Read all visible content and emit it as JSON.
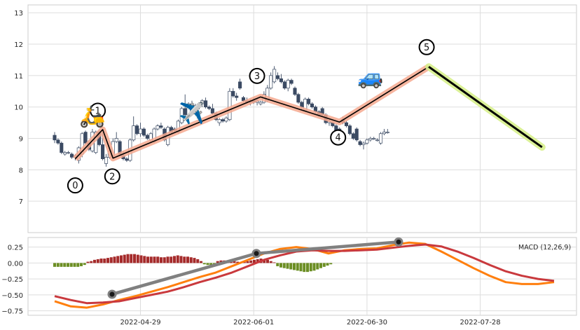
{
  "chart_data": [
    {
      "type": "candlestick",
      "panel": "price",
      "ylim": [
        6.0,
        13.25
      ],
      "yticks": [
        7,
        8,
        9,
        10,
        11,
        12,
        13
      ],
      "xlim": [
        -5,
        175
      ],
      "grid": true,
      "candles": [
        [
          9.1,
          9.2,
          8.85,
          8.95
        ],
        [
          8.95,
          9.0,
          8.8,
          8.85
        ],
        [
          8.85,
          8.9,
          8.5,
          8.55
        ],
        [
          8.5,
          8.6,
          8.45,
          8.55
        ],
        [
          8.55,
          8.6,
          8.5,
          8.55
        ],
        [
          8.5,
          8.55,
          8.35,
          8.4
        ],
        [
          8.4,
          8.5,
          8.3,
          8.45
        ],
        [
          8.3,
          8.75,
          8.2,
          8.7
        ],
        [
          8.5,
          9.2,
          8.4,
          9.15
        ],
        [
          9.2,
          9.25,
          8.8,
          8.85
        ],
        [
          8.85,
          8.95,
          8.6,
          8.65
        ],
        [
          8.6,
          9.3,
          8.55,
          9.2
        ],
        [
          8.55,
          9.25,
          8.5,
          9.2
        ],
        [
          9.2,
          9.25,
          8.75,
          8.8
        ],
        [
          8.8,
          9.2,
          8.3,
          8.35
        ],
        [
          8.2,
          8.5,
          8.1,
          8.4
        ],
        [
          8.4,
          8.65,
          8.35,
          8.6
        ],
        [
          8.45,
          9.0,
          8.4,
          8.9
        ],
        [
          8.9,
          9.2,
          8.85,
          9.0
        ],
        [
          8.9,
          8.95,
          8.45,
          8.5
        ],
        [
          8.45,
          8.6,
          8.3,
          8.35
        ],
        [
          8.35,
          8.4,
          8.25,
          8.3
        ],
        [
          8.3,
          9.0,
          8.25,
          8.95
        ],
        [
          8.95,
          9.7,
          8.9,
          9.4
        ],
        [
          9.4,
          9.45,
          9.1,
          9.15
        ],
        [
          9.15,
          9.5,
          9.05,
          9.3
        ],
        [
          9.3,
          9.35,
          9.05,
          9.1
        ],
        [
          9.1,
          9.15,
          8.95,
          9.0
        ],
        [
          8.95,
          9.2,
          8.85,
          9.15
        ],
        [
          8.9,
          9.35,
          8.85,
          9.3
        ],
        [
          9.3,
          9.45,
          9.25,
          9.4
        ],
        [
          9.4,
          9.5,
          9.3,
          9.35
        ],
        [
          9.3,
          9.35,
          8.9,
          8.95
        ],
        [
          8.8,
          9.4,
          8.75,
          9.35
        ],
        [
          9.35,
          9.4,
          9.15,
          9.2
        ],
        [
          9.3,
          9.35,
          9.2,
          9.25
        ],
        [
          9.2,
          9.6,
          9.15,
          9.55
        ],
        [
          9.5,
          10.0,
          9.45,
          9.95
        ],
        [
          9.95,
          10.4,
          9.7,
          9.75
        ],
        [
          9.75,
          10.15,
          9.7,
          10.1
        ],
        [
          10.1,
          10.2,
          9.95,
          10.0
        ],
        [
          10.0,
          10.1,
          9.9,
          10.05
        ],
        [
          10.05,
          10.15,
          9.95,
          10.1
        ],
        [
          10.1,
          10.25,
          10.0,
          10.2
        ],
        [
          10.2,
          10.3,
          9.95,
          10.0
        ],
        [
          10.0,
          10.05,
          9.9,
          9.95
        ],
        [
          9.95,
          10.1,
          9.75,
          9.8
        ],
        [
          9.8,
          9.85,
          9.55,
          9.6
        ],
        [
          9.5,
          9.65,
          9.4,
          9.6
        ],
        [
          9.6,
          9.65,
          9.5,
          9.55
        ],
        [
          9.55,
          9.7,
          9.5,
          9.65
        ],
        [
          9.6,
          10.6,
          9.55,
          10.5
        ],
        [
          10.5,
          10.6,
          10.3,
          10.35
        ],
        [
          10.35,
          10.45,
          10.2,
          10.3
        ],
        [
          10.8,
          10.9,
          10.55,
          10.6
        ],
        [
          10.3,
          10.35,
          10.15,
          10.2
        ],
        [
          10.2,
          10.3,
          10.1,
          10.15
        ],
        [
          10.15,
          10.25,
          10.05,
          10.2
        ],
        [
          10.2,
          10.3,
          10.1,
          10.15
        ],
        [
          10.15,
          10.25,
          10.05,
          10.2
        ],
        [
          10.1,
          10.2,
          10.05,
          10.15
        ],
        [
          10.15,
          10.5,
          10.1,
          10.4
        ],
        [
          10.2,
          10.7,
          10.15,
          10.6
        ],
        [
          10.6,
          11.1,
          10.55,
          11.0
        ],
        [
          10.8,
          11.3,
          10.75,
          11.2
        ],
        [
          11.0,
          11.1,
          10.85,
          10.9
        ],
        [
          10.9,
          11.05,
          10.75,
          10.8
        ],
        [
          10.8,
          10.85,
          10.55,
          10.6
        ],
        [
          10.6,
          10.9,
          10.5,
          10.85
        ],
        [
          10.85,
          10.9,
          10.7,
          10.75
        ],
        [
          10.6,
          10.65,
          10.35,
          10.4
        ],
        [
          10.4,
          10.45,
          10.1,
          10.15
        ],
        [
          10.15,
          10.2,
          9.9,
          10.0
        ],
        [
          9.9,
          10.3,
          9.85,
          10.25
        ],
        [
          10.25,
          10.3,
          10.05,
          10.1
        ],
        [
          10.1,
          10.15,
          9.95,
          10.0
        ],
        [
          10.0,
          10.05,
          9.8,
          9.85
        ],
        [
          9.85,
          9.9,
          9.7,
          9.75
        ],
        [
          9.95,
          10.0,
          9.7,
          9.75
        ],
        [
          9.75,
          9.8,
          9.45,
          9.5
        ],
        [
          9.5,
          9.6,
          9.4,
          9.55
        ],
        [
          9.5,
          9.55,
          9.35,
          9.4
        ],
        [
          9.4,
          9.45,
          9.2,
          9.25
        ],
        [
          9.3,
          9.35,
          9.15,
          9.2
        ],
        [
          9.6,
          9.7,
          9.45,
          9.5
        ],
        [
          9.5,
          9.55,
          9.35,
          9.4
        ],
        [
          9.4,
          9.45,
          9.1,
          9.15
        ],
        [
          9.15,
          9.2,
          8.95,
          9.0
        ],
        [
          9.3,
          9.35,
          8.9,
          8.95
        ],
        [
          8.9,
          8.95,
          8.75,
          8.8
        ],
        [
          8.8,
          8.9,
          8.65,
          8.85
        ],
        [
          8.85,
          9.0,
          8.8,
          8.95
        ],
        [
          8.95,
          9.05,
          8.9,
          9.0
        ],
        [
          9.0,
          9.05,
          8.95,
          9.0
        ],
        [
          8.95,
          9.0,
          8.9,
          8.95
        ],
        [
          8.85,
          9.2,
          8.8,
          9.15
        ],
        [
          9.15,
          9.3,
          9.1,
          9.2
        ],
        [
          9.2,
          9.3,
          9.15,
          9.2
        ]
      ],
      "zigzag": [
        {
          "label": "0",
          "i": 6,
          "price": 8.35
        },
        {
          "label": "1",
          "i": 14,
          "price": 9.28
        },
        {
          "label": "2",
          "i": 17,
          "price": 8.37
        },
        {
          "label": "3",
          "i": 60,
          "price": 10.32
        },
        {
          "label": "4",
          "i": 83,
          "price": 9.52
        },
        {
          "label": "5",
          "i": 109,
          "price": 11.28
        }
      ],
      "trend_end": {
        "i": 142,
        "price": 8.72
      },
      "x_dates": [
        "2022-04-29",
        "2022-06-01",
        "2022-06-30",
        "2022-07-28"
      ],
      "colors": {
        "up": "#ffffff",
        "down": "#3b4a63",
        "wick": "#3b4a63",
        "zigzag": "#000000",
        "zig_shadow": "#f4a88e",
        "trend_shadow": "#d8f08c"
      },
      "icons": [
        {
          "name": "scooter-icon",
          "glyph": "🛵",
          "i": 11,
          "price": 9.7
        },
        {
          "name": "airplane-icon",
          "glyph": "✈️",
          "i": 40,
          "price": 9.8
        },
        {
          "name": "car-icon",
          "glyph": "🚙",
          "i": 92,
          "price": 10.95
        }
      ]
    },
    {
      "type": "line",
      "panel": "macd",
      "label": "MACD (12,26,9)",
      "ylim": [
        -0.82,
        0.4
      ],
      "yticks": [
        0.25,
        0.0,
        -0.25,
        -0.5,
        -0.75
      ],
      "ytick_labels": [
        "0.25",
        "0.00",
        "−0.25",
        "−0.50",
        "−0.75"
      ],
      "grid": true,
      "series": [
        {
          "color": "#ff7f0e",
          "points": [
            [
              0,
              -0.6
            ],
            [
              5,
              -0.68
            ],
            [
              10,
              -0.7
            ],
            [
              15,
              -0.65
            ],
            [
              20,
              -0.58
            ],
            [
              25,
              -0.52
            ],
            [
              30,
              -0.45
            ],
            [
              35,
              -0.38
            ],
            [
              40,
              -0.3
            ],
            [
              45,
              -0.22
            ],
            [
              50,
              -0.15
            ],
            [
              55,
              -0.05
            ],
            [
              60,
              0.05
            ],
            [
              65,
              0.15
            ],
            [
              70,
              0.22
            ],
            [
              75,
              0.25
            ],
            [
              80,
              0.22
            ],
            [
              85,
              0.15
            ],
            [
              90,
              0.2
            ],
            [
              95,
              0.22
            ],
            [
              100,
              0.23
            ],
            [
              105,
              0.28
            ],
            [
              110,
              0.32
            ],
            [
              115,
              0.3
            ],
            [
              120,
              0.18
            ],
            [
              125,
              0.05
            ],
            [
              130,
              -0.08
            ],
            [
              135,
              -0.2
            ],
            [
              140,
              -0.3
            ],
            [
              145,
              -0.33
            ],
            [
              150,
              -0.33
            ],
            [
              155,
              -0.3
            ]
          ]
        },
        {
          "color": "#c9393d",
          "points": [
            [
              0,
              -0.52
            ],
            [
              5,
              -0.58
            ],
            [
              10,
              -0.63
            ],
            [
              15,
              -0.62
            ],
            [
              20,
              -0.6
            ],
            [
              25,
              -0.55
            ],
            [
              30,
              -0.5
            ],
            [
              35,
              -0.45
            ],
            [
              40,
              -0.38
            ],
            [
              45,
              -0.3
            ],
            [
              50,
              -0.23
            ],
            [
              55,
              -0.15
            ],
            [
              60,
              -0.05
            ],
            [
              65,
              0.05
            ],
            [
              70,
              0.12
            ],
            [
              75,
              0.18
            ],
            [
              80,
              0.2
            ],
            [
              85,
              0.19
            ],
            [
              90,
              0.19
            ],
            [
              95,
              0.2
            ],
            [
              100,
              0.21
            ],
            [
              105,
              0.24
            ],
            [
              110,
              0.27
            ],
            [
              115,
              0.29
            ],
            [
              120,
              0.26
            ],
            [
              125,
              0.18
            ],
            [
              130,
              0.08
            ],
            [
              135,
              -0.03
            ],
            [
              140,
              -0.13
            ],
            [
              145,
              -0.2
            ],
            [
              150,
              -0.25
            ],
            [
              155,
              -0.28
            ]
          ]
        }
      ],
      "histogram": [
        -0.06,
        -0.06,
        -0.06,
        -0.06,
        -0.06,
        -0.06,
        -0.06,
        -0.06,
        -0.05,
        -0.03,
        0.02,
        0.03,
        0.05,
        0.06,
        0.07,
        0.07,
        0.08,
        0.09,
        0.1,
        0.11,
        0.12,
        0.13,
        0.14,
        0.14,
        0.14,
        0.13,
        0.12,
        0.11,
        0.1,
        0.1,
        0.1,
        0.1,
        0.09,
        0.09,
        0.1,
        0.1,
        0.11,
        0.12,
        0.11,
        0.1,
        0.1,
        0.09,
        0.08,
        0.06,
        0.03,
        -0.02,
        -0.03,
        -0.04,
        -0.03,
        0.03,
        0.04,
        0.04,
        0.03,
        0.03,
        0.03,
        0.02,
        0.01,
        0.02,
        0.03,
        0.04,
        0.05,
        0.06,
        0.07,
        0.06,
        0.05,
        0.03,
        0.01,
        -0.05,
        -0.07,
        -0.08,
        -0.09,
        -0.1,
        -0.11,
        -0.12,
        -0.13,
        -0.14,
        -0.14,
        -0.13,
        -0.12,
        -0.1,
        -0.08,
        -0.06,
        -0.04,
        -0.02
      ],
      "hist_colors": {
        "pos": "#a52a2a",
        "neg": "#6b8e23"
      },
      "divergence_line": {
        "color": "#808080",
        "points": [
          [
            13,
            -0.49
          ],
          [
            57,
            0.15
          ],
          [
            109,
            0.33
          ]
        ]
      }
    }
  ]
}
